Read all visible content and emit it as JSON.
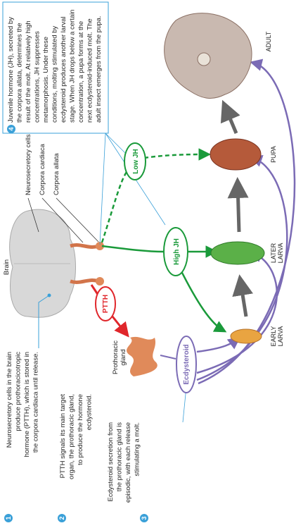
{
  "brain_label": "Brain",
  "structure_labels": [
    "Neurosecretory cells",
    "Corpora cardiaca",
    "Corpora allata"
  ],
  "hormones": {
    "ptth": "PTTH",
    "ecdysteroid": "Ecdysteroid",
    "high_jh": "High JH",
    "low_jh": "Low JH"
  },
  "gland_label": [
    "Prothoracic",
    "gland"
  ],
  "stages": [
    {
      "label": [
        "EARLY",
        "LARVA"
      ]
    },
    {
      "label": [
        "LATER",
        "LARVA"
      ]
    },
    {
      "label": [
        "PUPA"
      ]
    },
    {
      "label": [
        "ADULT"
      ]
    }
  ],
  "steps": [
    {
      "number": "1",
      "lines": [
        "Neurosecretory cells in the brain",
        "produce prothoracicotropic",
        "hormone (PTTH), which is stored in",
        "the corpora cardiaca until release."
      ]
    },
    {
      "number": "2",
      "lines": [
        "PTTH signals its main target",
        "organ, the prothoracic gland,",
        "to produce the hormone",
        "ecdysteroid."
      ]
    },
    {
      "number": "3",
      "lines": [
        "Ecdysteroid secretion from",
        "the prothoracic gland is",
        "episodic, with each release",
        "stimulating a molt."
      ]
    },
    {
      "number": "4",
      "lines": [
        "Juvenile hormone (JH), secreted by",
        "the corpora allata, determines the",
        "result of the molt. At relatively high",
        "concentrations, JH suppresses",
        "metamorphosis. Under these",
        "conditions, molting stimulated by",
        "ecdysteroid produces another larval",
        "stage. When JH drops below a certain",
        "concentration, a pupa forms at the",
        "next ecdysteroid-induced molt. The",
        "adult insect emerges from the pupa."
      ]
    }
  ]
}
